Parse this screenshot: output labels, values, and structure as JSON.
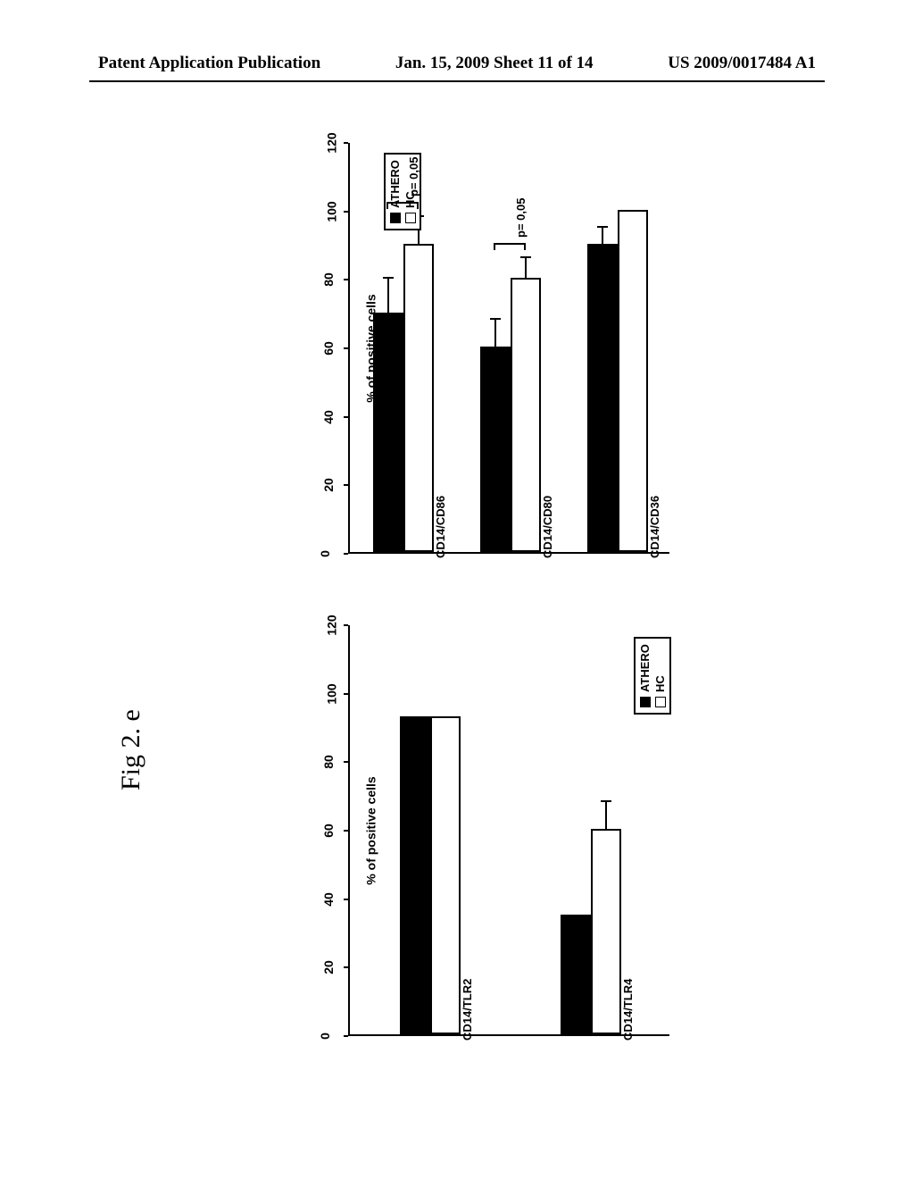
{
  "header": {
    "left": "Patent Application Publication",
    "center": "Jan. 15, 2009  Sheet 11 of 14",
    "right": "US 2009/0017484 A1"
  },
  "figure_label": "Fig 2. e",
  "yaxis": {
    "title": "% of positive cells",
    "min": 0,
    "max": 120,
    "step": 20
  },
  "legend": {
    "series1": "ATHERO",
    "series2": "HC"
  },
  "chart_top": {
    "pvalues": [
      "p= 0,05",
      "p= 0,05"
    ],
    "categories": [
      "CD14/CD86",
      "CD14/CD80",
      "CD14/CD36"
    ],
    "athero": [
      70,
      60,
      90
    ],
    "athero_err": [
      10,
      8,
      5
    ],
    "hc": [
      90,
      80,
      100
    ],
    "hc_err": [
      8,
      6,
      0
    ],
    "bar_color_athero": "#000000",
    "bar_color_hc": "#ffffff"
  },
  "chart_bottom": {
    "categories": [
      "CD14/TLR2",
      "CD14/TLR4"
    ],
    "athero": [
      93,
      35
    ],
    "athero_err": [
      0,
      0
    ],
    "hc": [
      93,
      60
    ],
    "hc_err": [
      0,
      8
    ],
    "bar_color_athero": "#000000",
    "bar_color_hc": "#ffffff"
  }
}
